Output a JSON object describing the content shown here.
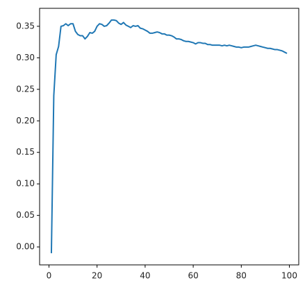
{
  "chart_data": {
    "type": "line",
    "x": [
      1,
      2,
      3,
      4,
      5,
      6,
      7,
      8,
      9,
      10,
      11,
      12,
      13,
      14,
      15,
      16,
      17,
      18,
      19,
      20,
      21,
      22,
      23,
      24,
      25,
      26,
      27,
      28,
      29,
      30,
      31,
      32,
      33,
      34,
      35,
      36,
      37,
      38,
      39,
      40,
      41,
      42,
      43,
      44,
      45,
      46,
      47,
      48,
      49,
      50,
      51,
      52,
      53,
      54,
      55,
      56,
      57,
      58,
      59,
      60,
      61,
      62,
      63,
      64,
      65,
      66,
      67,
      68,
      69,
      70,
      71,
      72,
      73,
      74,
      75,
      76,
      77,
      78,
      79,
      80,
      81,
      82,
      83,
      84,
      85,
      86,
      87,
      88,
      89,
      90,
      91,
      92,
      93,
      94,
      95,
      96,
      97,
      98,
      99
    ],
    "series": [
      {
        "color": "#1f77b4",
        "values": [
          -0.01,
          0.24,
          0.305,
          0.318,
          0.35,
          0.351,
          0.354,
          0.351,
          0.354,
          0.354,
          0.342,
          0.337,
          0.335,
          0.335,
          0.33,
          0.334,
          0.34,
          0.339,
          0.342,
          0.35,
          0.354,
          0.353,
          0.35,
          0.351,
          0.355,
          0.36,
          0.36,
          0.359,
          0.355,
          0.353,
          0.356,
          0.352,
          0.35,
          0.348,
          0.351,
          0.35,
          0.351,
          0.347,
          0.346,
          0.344,
          0.342,
          0.339,
          0.339,
          0.34,
          0.341,
          0.34,
          0.338,
          0.338,
          0.336,
          0.336,
          0.335,
          0.333,
          0.33,
          0.33,
          0.329,
          0.327,
          0.326,
          0.326,
          0.325,
          0.324,
          0.322,
          0.324,
          0.324,
          0.323,
          0.323,
          0.321,
          0.321,
          0.32,
          0.32,
          0.32,
          0.32,
          0.319,
          0.32,
          0.319,
          0.32,
          0.319,
          0.318,
          0.317,
          0.317,
          0.316,
          0.317,
          0.317,
          0.317,
          0.318,
          0.319,
          0.32,
          0.319,
          0.318,
          0.317,
          0.316,
          0.315,
          0.315,
          0.314,
          0.313,
          0.313,
          0.312,
          0.311,
          0.309,
          0.307
        ]
      }
    ],
    "xlim": [
      -3.9,
      103.9
    ],
    "ylim": [
      -0.0285,
      0.3785
    ],
    "xticks": [
      0,
      20,
      40,
      60,
      80,
      100
    ],
    "yticks": [
      {
        "value": 0,
        "label": "0.00"
      },
      {
        "value": 0.05,
        "label": "0.05"
      },
      {
        "value": 0.1,
        "label": "0.10"
      },
      {
        "value": 0.15,
        "label": "0.15"
      },
      {
        "value": 0.2,
        "label": "0.20"
      },
      {
        "value": 0.25,
        "label": "0.25"
      },
      {
        "value": 0.3,
        "label": "0.30"
      },
      {
        "value": 0.35,
        "label": "0.35"
      }
    ],
    "grid": false
  }
}
